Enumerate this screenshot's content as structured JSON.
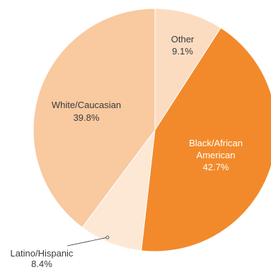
{
  "chart_data": {
    "type": "pie",
    "slices": [
      {
        "name": "Other",
        "value": 9.1,
        "value_label": "9.1%",
        "label_lines": [
          "Other"
        ],
        "color": "#FCDCC1",
        "label_color": "#3a3a3a",
        "leader_line": false
      },
      {
        "name": "Black/African American",
        "value": 42.7,
        "value_label": "42.7%",
        "label_lines": [
          "Black/African",
          "American"
        ],
        "color": "#F28A2B",
        "label_color": "#ffffff",
        "leader_line": false
      },
      {
        "name": "Latino/Hispanic",
        "value": 8.4,
        "value_label": "8.4%",
        "label_lines": [
          "Latino/Hispanic"
        ],
        "color": "#FDE8D6",
        "label_color": "#3a3a3a",
        "leader_line": true
      },
      {
        "name": "White/Caucasian",
        "value": 39.8,
        "value_label": "39.8%",
        "label_lines": [
          "White/Caucasian"
        ],
        "color": "#F9C9A0",
        "label_color": "#3a3a3a",
        "leader_line": false
      }
    ]
  }
}
